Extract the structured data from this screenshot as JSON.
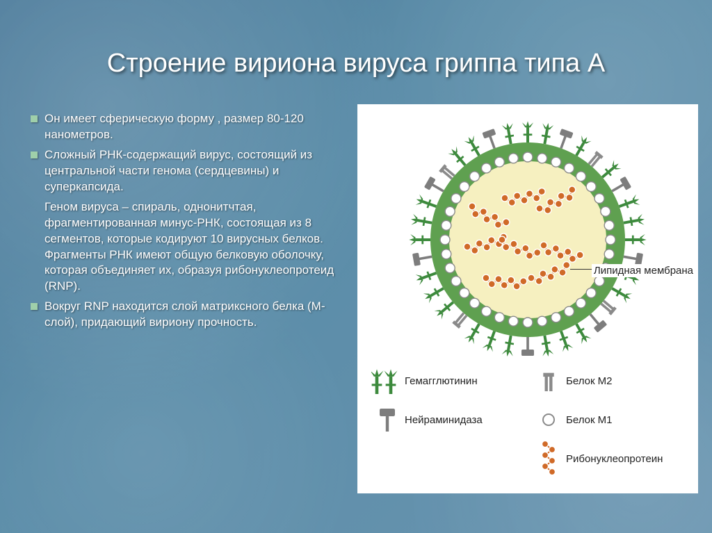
{
  "title": "Строение вириона вируса гриппа типа А",
  "bullets": [
    {
      "text": "Он имеет сферическую форму , размер 80-120 нанометров.",
      "bullet": true
    },
    {
      "text": "Сложный РНК-содержащий вирус, состоящий из центральной части генома (сердцевины) и суперкапсида.",
      "bullet": true
    },
    {
      "text": "Геном вируса – спираль, однонитчтая, фрагментированная минус-РНК, состоящая из 8 сегментов, которые кодируют 10 вирусных белков. Фрагменты РНК имеют общую белковую оболочку, которая объединяет их, образуя рибонуклеопротеид (RNP).",
      "bullet": false
    },
    {
      "text": "Вокруг RNP находится слой матриксного белка (М-слой), придающий вириону прочность.",
      "bullet": true
    }
  ],
  "labels": {
    "lipid_membrane": "Липидная мембрана",
    "hemagglutinin": "Гемагглютинин",
    "m2_protein": "Белок М2",
    "neuraminidase": "Нейраминидаза",
    "m1_protein": "Белок М1",
    "rnp": "Рибонуклеопротеин"
  },
  "colors": {
    "background_start": "#4a7a9a",
    "background_end": "#6a95b0",
    "bullet_square": "#9fcfaa",
    "virus_envelope": "#5fa050",
    "virus_interior": "#f6f0c0",
    "m1_circle_stroke": "#8a8a8a",
    "m1_circle_fill": "#ffffff",
    "hemagglutinin": "#3d8a3d",
    "neuraminidase": "#7d7d7d",
    "m2_fill": "#8a8a8a",
    "rnp_stroke": "#d06a28",
    "rnp_ball": "#d06a28",
    "text_label": "#222222"
  },
  "diagram": {
    "type": "biological-schematic",
    "shape": "spherical-virion",
    "outer_radius": 140,
    "inner_radius": 110,
    "m1_circle_count": 36,
    "m1_circle_radius": 7,
    "hemagglutinin_count": 24,
    "neuraminidase_count": 8,
    "m2_count": 4,
    "rnp_count": 8,
    "rnp_beads": 7,
    "rnp_bead_radius": 5
  },
  "typography": {
    "title_fontsize": 38,
    "body_fontsize": 17,
    "label_fontsize": 15
  }
}
